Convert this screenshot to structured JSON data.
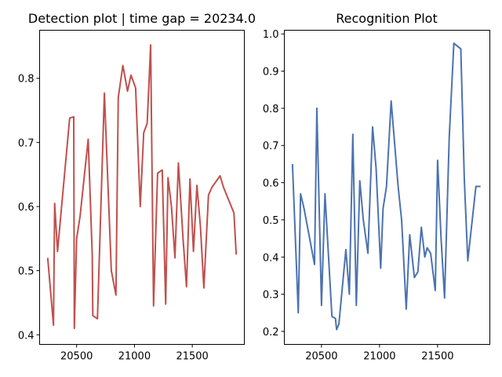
{
  "chart_data": [
    {
      "type": "line",
      "title": "Detection plot | time gap = 20234.0",
      "xlabel": "",
      "ylabel": "",
      "xlim": [
        20180,
        21950
      ],
      "ylim": [
        0.385,
        0.875
      ],
      "xticks": [
        20500,
        21000,
        21500
      ],
      "yticks": [
        0.4,
        0.5,
        0.6,
        0.7,
        0.8
      ],
      "grid": false,
      "series": [
        {
          "color": "#c0504d",
          "x": [
            20250,
            20300,
            20310,
            20335,
            20370,
            20440,
            20475,
            20480,
            20500,
            20530,
            20600,
            20635,
            20640,
            20680,
            20740,
            20800,
            20840,
            20860,
            20900,
            20940,
            20970,
            21010,
            21050,
            21080,
            21110,
            21140,
            21165,
            21200,
            21240,
            21270,
            21290,
            21320,
            21350,
            21380,
            21420,
            21450,
            21480,
            21510,
            21540,
            21570,
            21600,
            21640,
            21670,
            21740,
            21770,
            21860,
            21880
          ],
          "y": [
            0.52,
            0.415,
            0.605,
            0.53,
            0.6,
            0.738,
            0.74,
            0.41,
            0.55,
            0.585,
            0.705,
            0.525,
            0.43,
            0.425,
            0.777,
            0.5,
            0.462,
            0.77,
            0.82,
            0.78,
            0.805,
            0.785,
            0.6,
            0.715,
            0.73,
            0.852,
            0.445,
            0.652,
            0.657,
            0.448,
            0.645,
            0.6,
            0.52,
            0.668,
            0.55,
            0.475,
            0.643,
            0.53,
            0.633,
            0.57,
            0.473,
            0.618,
            0.63,
            0.648,
            0.63,
            0.59,
            0.525
          ]
        }
      ]
    },
    {
      "type": "line",
      "title": "Recognition Plot",
      "xlabel": "",
      "ylabel": "",
      "xlim": [
        20180,
        21950
      ],
      "ylim": [
        0.165,
        1.01
      ],
      "xticks": [
        20500,
        21000,
        21500
      ],
      "yticks": [
        0.2,
        0.3,
        0.4,
        0.5,
        0.6,
        0.7,
        0.8,
        0.9,
        1.0
      ],
      "grid": false,
      "series": [
        {
          "color": "#4c72b0",
          "x": [
            20250,
            20300,
            20320,
            20350,
            20440,
            20460,
            20500,
            20530,
            20590,
            20620,
            20630,
            20650,
            20710,
            20740,
            20770,
            20800,
            20830,
            20860,
            20900,
            20940,
            20970,
            21010,
            21030,
            21060,
            21100,
            21160,
            21190,
            21230,
            21260,
            21300,
            21330,
            21360,
            21390,
            21410,
            21440,
            21480,
            21500,
            21530,
            21560,
            21600,
            21640,
            21700,
            21730,
            21760,
            21830,
            21860,
            21870
          ],
          "y": [
            0.65,
            0.25,
            0.57,
            0.53,
            0.38,
            0.8,
            0.27,
            0.57,
            0.24,
            0.235,
            0.205,
            0.22,
            0.42,
            0.3,
            0.73,
            0.27,
            0.605,
            0.5,
            0.41,
            0.75,
            0.64,
            0.37,
            0.53,
            0.59,
            0.82,
            0.59,
            0.5,
            0.26,
            0.46,
            0.345,
            0.36,
            0.48,
            0.4,
            0.425,
            0.41,
            0.31,
            0.66,
            0.45,
            0.29,
            0.72,
            0.975,
            0.96,
            0.61,
            0.39,
            0.59,
            0.59,
            0.59
          ]
        }
      ]
    }
  ]
}
